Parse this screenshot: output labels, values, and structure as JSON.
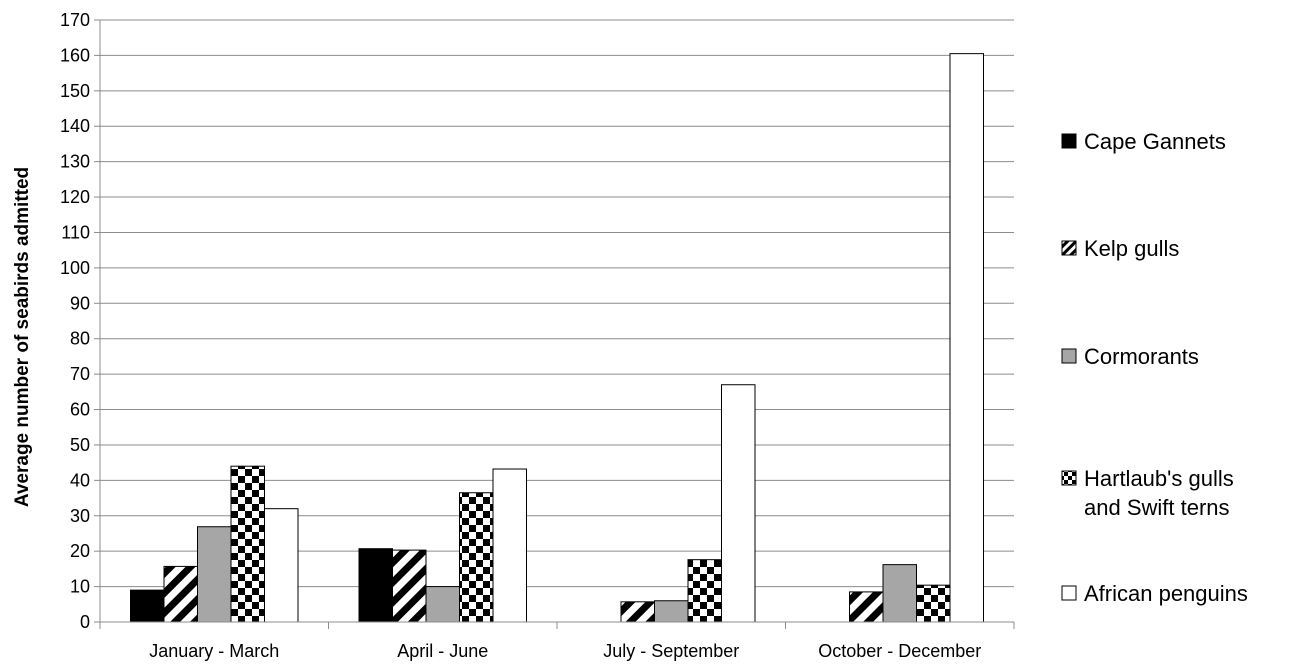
{
  "chart_data": {
    "type": "bar",
    "title": "",
    "xlabel": "",
    "ylabel": "Average number of seabirds admitted",
    "ylim": [
      0,
      170
    ],
    "ytick_step": 10,
    "grid": true,
    "legend_position": "right",
    "categories": [
      "January - March",
      "April - June",
      "July - September",
      "October - December"
    ],
    "series": [
      {
        "name": "Cape Gannets",
        "pattern": "solid-black",
        "color": "#000000",
        "values": [
          9,
          20.7,
          0,
          0
        ]
      },
      {
        "name": "Kelp gulls",
        "pattern": "diagonal-stripes",
        "color": "#000000",
        "values": [
          15.7,
          20.3,
          5.7,
          8.5
        ]
      },
      {
        "name": "Cormorants",
        "pattern": "solid-gray",
        "color": "#a6a6a6",
        "values": [
          26.9,
          10,
          6,
          16.2
        ]
      },
      {
        "name": "Hartlaub's gulls and Swift terns",
        "legend_lines": [
          "Hartlaub's gulls",
          "and Swift terns"
        ],
        "pattern": "checkerboard",
        "color": "#000000",
        "values": [
          44,
          36.5,
          17.6,
          10.4
        ]
      },
      {
        "name": "African penguins",
        "pattern": "solid-white",
        "color": "#ffffff",
        "values": [
          32,
          43.2,
          67,
          160.5
        ]
      }
    ]
  }
}
